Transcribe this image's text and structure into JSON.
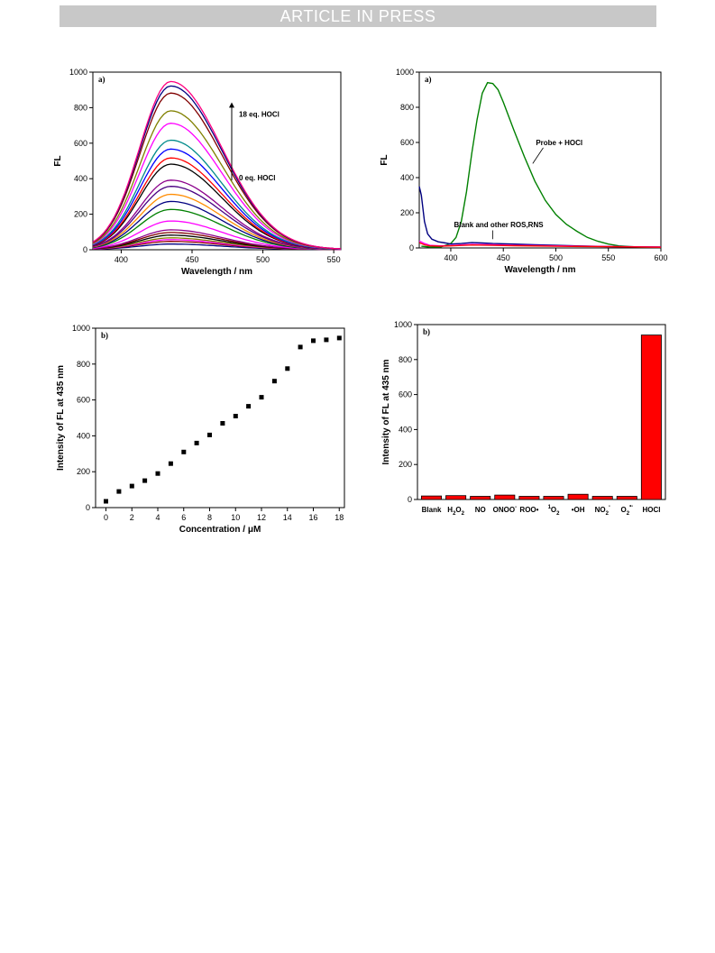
{
  "header": {
    "banner": "ARTICLE IN PRESS"
  },
  "chart_data": [
    {
      "type": "line",
      "panel_label": "a)",
      "xlabel": "Wavelength / nm",
      "ylabel": "FL",
      "xlim": [
        380,
        555
      ],
      "ylim": [
        0,
        1000
      ],
      "xticks": [
        400,
        450,
        500,
        550
      ],
      "yticks": [
        0,
        200,
        400,
        600,
        800,
        1000
      ],
      "peak_x": 435,
      "annotations": [
        "18 eq. HOCl",
        "0 eq. HOCl"
      ],
      "series": [
        {
          "peak": 30,
          "color": "#000080"
        },
        {
          "peak": 45,
          "color": "#8B0000"
        },
        {
          "peak": 55,
          "color": "#FF00FF"
        },
        {
          "peak": 65,
          "color": "#808000"
        },
        {
          "peak": 80,
          "color": "#000000"
        },
        {
          "peak": 95,
          "color": "#800000"
        },
        {
          "peak": 110,
          "color": "#8B008B"
        },
        {
          "peak": 160,
          "color": "#FF00FF"
        },
        {
          "peak": 225,
          "color": "#008000"
        },
        {
          "peak": 270,
          "color": "#000080"
        },
        {
          "peak": 310,
          "color": "#FF8C00"
        },
        {
          "peak": 355,
          "color": "#4B0082"
        },
        {
          "peak": 390,
          "color": "#8B008B"
        },
        {
          "peak": 480,
          "color": "#000000"
        },
        {
          "peak": 515,
          "color": "#FF0000"
        },
        {
          "peak": 565,
          "color": "#0000FF"
        },
        {
          "peak": 615,
          "color": "#008B8B"
        },
        {
          "peak": 710,
          "color": "#FF00FF"
        },
        {
          "peak": 780,
          "color": "#808000"
        },
        {
          "peak": 880,
          "color": "#800000"
        },
        {
          "peak": 920,
          "color": "#000080"
        },
        {
          "peak": 945,
          "color": "#FF0080"
        }
      ]
    },
    {
      "type": "line",
      "panel_label": "a)",
      "xlabel": "Wavelength / nm",
      "ylabel": "FL",
      "xlim": [
        370,
        600
      ],
      "ylim": [
        0,
        1000
      ],
      "xticks": [
        400,
        450,
        500,
        550,
        600
      ],
      "yticks": [
        0,
        200,
        400,
        600,
        800,
        1000
      ],
      "annotations": [
        "Probe + HOCl",
        "Blank and other ROS,RNS"
      ],
      "series": [
        {
          "label": "Probe + HOCl",
          "color": "#008000",
          "x": [
            372,
            380,
            390,
            400,
            405,
            410,
            415,
            420,
            425,
            430,
            435,
            440,
            445,
            450,
            460,
            470,
            480,
            490,
            500,
            510,
            520,
            530,
            540,
            550,
            560,
            570,
            580,
            600
          ],
          "y": [
            10,
            5,
            5,
            25,
            60,
            150,
            320,
            540,
            730,
            880,
            940,
            935,
            900,
            830,
            670,
            520,
            380,
            270,
            190,
            135,
            95,
            60,
            38,
            22,
            12,
            8,
            5,
            3
          ]
        },
        {
          "label": "Blank",
          "color": "#000080",
          "x": [
            370,
            372,
            375,
            378,
            382,
            388,
            395,
            400,
            410,
            420,
            430,
            440,
            460,
            480,
            500,
            520,
            550,
            600
          ],
          "y": [
            350,
            300,
            150,
            80,
            50,
            35,
            28,
            22,
            25,
            30,
            28,
            25,
            22,
            18,
            15,
            12,
            8,
            5
          ]
        },
        {
          "label": "Other ROS",
          "color": "#FF00FF",
          "x": [
            370,
            375,
            380,
            390,
            400,
            420,
            440,
            460,
            500,
            550,
            600
          ],
          "y": [
            40,
            25,
            15,
            12,
            14,
            20,
            18,
            15,
            12,
            8,
            5
          ]
        },
        {
          "label": "Other RNS",
          "color": "#FF0000",
          "x": [
            370,
            375,
            380,
            390,
            400,
            420,
            440,
            460,
            500,
            550,
            600
          ],
          "y": [
            30,
            18,
            12,
            10,
            12,
            17,
            15,
            13,
            10,
            7,
            4
          ]
        }
      ]
    },
    {
      "type": "scatter",
      "panel_label": "b)",
      "xlabel": "Concentration / μM",
      "ylabel": "Intensity of FL at 435 nm",
      "xlim": [
        -0.8,
        18.4
      ],
      "ylim": [
        0,
        1000
      ],
      "xticks": [
        0,
        2,
        4,
        6,
        8,
        10,
        12,
        14,
        16,
        18
      ],
      "yticks": [
        0,
        200,
        400,
        600,
        800,
        1000
      ],
      "x": [
        0,
        1,
        2,
        3,
        4,
        5,
        6,
        7,
        8,
        9,
        10,
        11,
        12,
        13,
        14,
        15,
        16,
        17,
        18
      ],
      "y": [
        35,
        90,
        120,
        150,
        190,
        245,
        310,
        360,
        405,
        470,
        510,
        565,
        615,
        705,
        775,
        895,
        930,
        935,
        945
      ]
    },
    {
      "type": "bar",
      "panel_label": "b)",
      "xlabel": "",
      "ylabel": "Intensity of FL at 435 nm",
      "ylim": [
        0,
        1000
      ],
      "yticks": [
        0,
        200,
        400,
        600,
        800,
        1000
      ],
      "bar_color": "#FF0000",
      "categories": [
        {
          "base": "Blank",
          "sub": "",
          "sup": "",
          "suffix": ""
        },
        {
          "base": "H",
          "sub": "2",
          "sup": "",
          "suffix": "O",
          "sub2": "2"
        },
        {
          "base": "NO",
          "sub": "",
          "sup": "",
          "suffix": ""
        },
        {
          "base": "ONOO",
          "sub": "",
          "sup": "-",
          "suffix": ""
        },
        {
          "base": "ROO•",
          "sub": "",
          "sup": "",
          "suffix": ""
        },
        {
          "base": "O",
          "pre_sup": "1",
          "sub": "2",
          "sup": "",
          "suffix": ""
        },
        {
          "base": "•OH",
          "sub": "",
          "sup": "",
          "suffix": ""
        },
        {
          "base": "NO",
          "sub": "2",
          "sup": "-",
          "suffix": ""
        },
        {
          "base": "O",
          "sub": "2",
          "sup": "•-",
          "suffix": ""
        },
        {
          "base": "HOCl",
          "sub": "",
          "sup": "",
          "suffix": ""
        }
      ],
      "values": [
        20,
        22,
        18,
        25,
        18,
        18,
        30,
        18,
        18,
        940
      ]
    }
  ]
}
